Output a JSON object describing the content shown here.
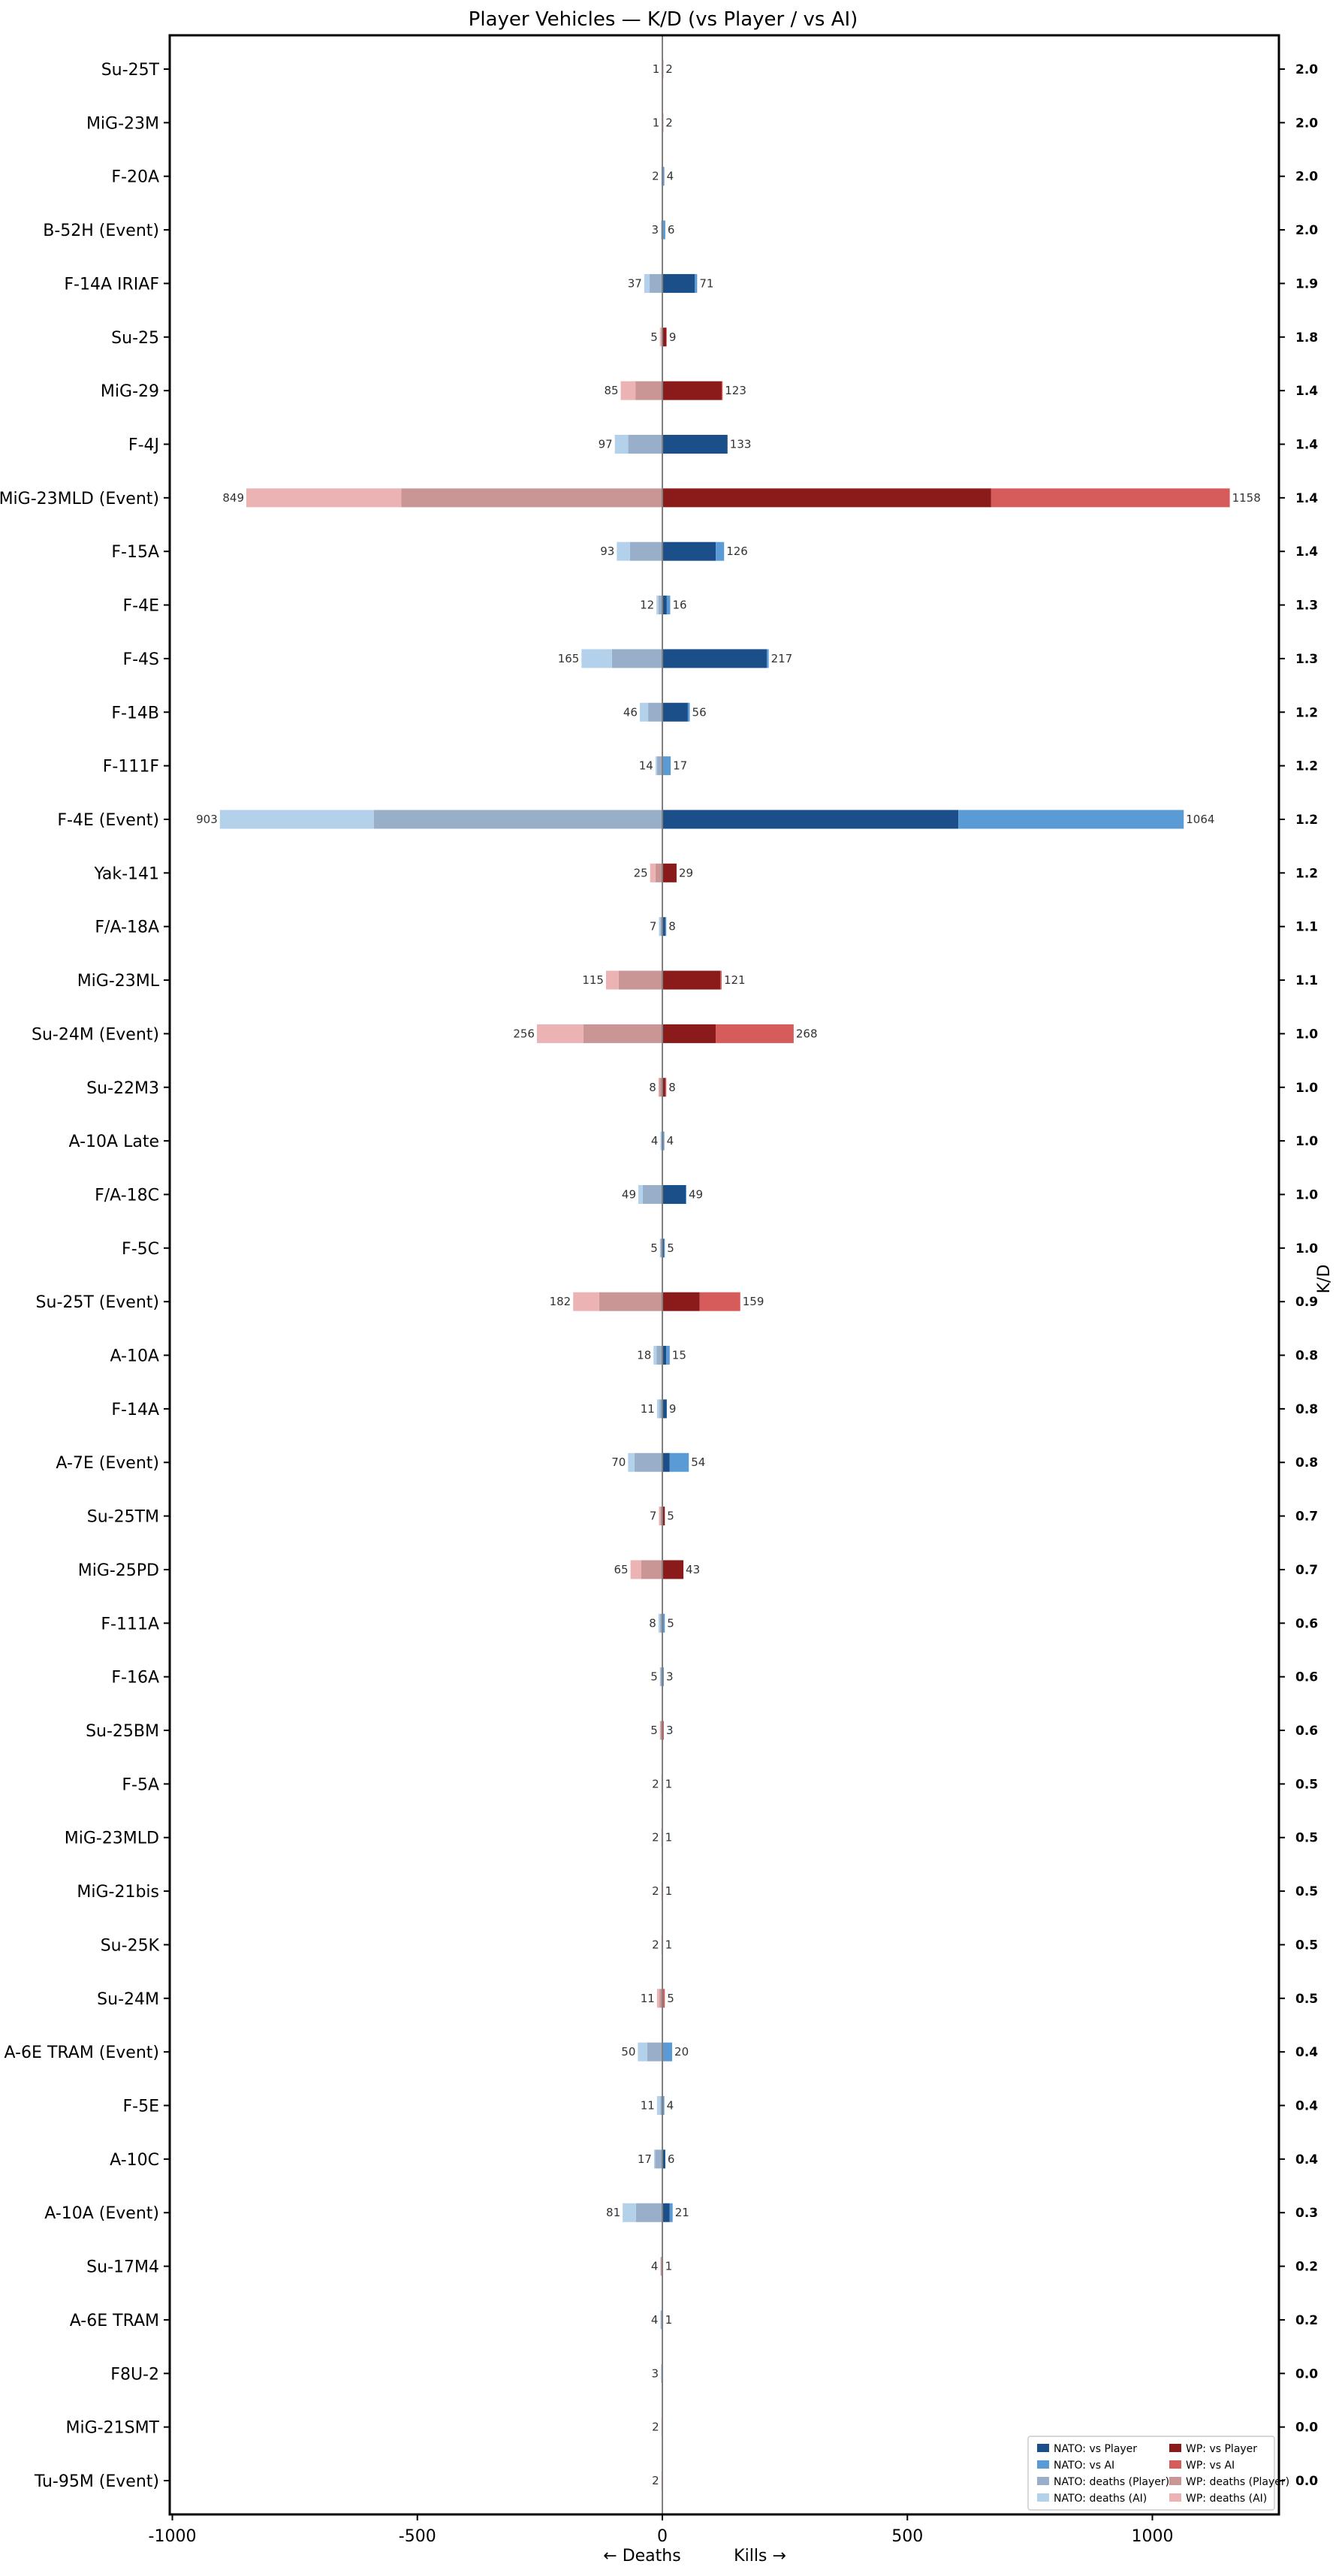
{
  "chart_data": {
    "type": "bar",
    "orientation": "horizontal-diverging-stacked",
    "title": "Player Vehicles — K/D (vs Player / vs AI)",
    "xlabel_left": "← Deaths",
    "xlabel_right": "Kills →",
    "right_ylabel": "K/D",
    "xlim": [
      -1000,
      1250
    ],
    "xticks": [
      -1000,
      -500,
      0,
      500,
      1000
    ],
    "grid": false,
    "legend_position": "bottom-right",
    "colors": {
      "NATO": {
        "kills_player": "#1b4f8a",
        "kills_ai": "#5b9bd5",
        "deaths_player": "#99afc9",
        "deaths_ai": "#b3d1eb"
      },
      "WP": {
        "kills_player": "#8b1a1a",
        "kills_ai": "#d65c5c",
        "deaths_player": "#c99595",
        "deaths_ai": "#ebb3b3"
      }
    },
    "legend": [
      {
        "label": "NATO: vs Player",
        "key": "NATO.kills_player"
      },
      {
        "label": "NATO: vs AI",
        "key": "NATO.kills_ai"
      },
      {
        "label": "NATO: deaths (Player)",
        "key": "NATO.deaths_player"
      },
      {
        "label": "NATO: deaths (AI)",
        "key": "NATO.deaths_ai"
      },
      {
        "label": "WP: vs Player",
        "key": "WP.kills_player"
      },
      {
        "label": "WP: vs AI",
        "key": "WP.kills_ai"
      },
      {
        "label": "WP: deaths (Player)",
        "key": "WP.deaths_player"
      },
      {
        "label": "WP: deaths (AI)",
        "key": "WP.deaths_ai"
      }
    ],
    "rows": [
      {
        "name": "Su-25T",
        "side": "WP",
        "kills_player": 1,
        "kills_ai": 1,
        "deaths_player": 0,
        "deaths_ai": 1,
        "kills": 2,
        "deaths": 1,
        "kd": "2.0"
      },
      {
        "name": "MiG-23M",
        "side": "WP",
        "kills_player": 1,
        "kills_ai": 1,
        "deaths_player": 0,
        "deaths_ai": 1,
        "kills": 2,
        "deaths": 1,
        "kd": "2.0"
      },
      {
        "name": "F-20A",
        "side": "NATO",
        "kills_player": 2,
        "kills_ai": 2,
        "deaths_player": 1,
        "deaths_ai": 1,
        "kills": 4,
        "deaths": 2,
        "kd": "2.0"
      },
      {
        "name": "B-52H (Event)",
        "side": "NATO",
        "kills_player": 0,
        "kills_ai": 6,
        "deaths_player": 2,
        "deaths_ai": 1,
        "kills": 6,
        "deaths": 3,
        "kd": "2.0"
      },
      {
        "name": "F-14A IRIAF",
        "side": "NATO",
        "kills_player": 66,
        "kills_ai": 5,
        "deaths_player": 26,
        "deaths_ai": 11,
        "kills": 71,
        "deaths": 37,
        "kd": "1.9"
      },
      {
        "name": "Su-25",
        "side": "WP",
        "kills_player": 8,
        "kills_ai": 1,
        "deaths_player": 2,
        "deaths_ai": 3,
        "kills": 9,
        "deaths": 5,
        "kd": "1.8"
      },
      {
        "name": "MiG-29",
        "side": "WP",
        "kills_player": 121,
        "kills_ai": 2,
        "deaths_player": 55,
        "deaths_ai": 30,
        "kills": 123,
        "deaths": 85,
        "kd": "1.4"
      },
      {
        "name": "F-4J",
        "side": "NATO",
        "kills_player": 133,
        "kills_ai": 0,
        "deaths_player": 70,
        "deaths_ai": 27,
        "kills": 133,
        "deaths": 97,
        "kd": "1.4"
      },
      {
        "name": "MiG-23MLD (Event)",
        "side": "WP",
        "kills_player": 671,
        "kills_ai": 487,
        "deaths_player": 533,
        "deaths_ai": 316,
        "kills": 1158,
        "deaths": 849,
        "kd": "1.4"
      },
      {
        "name": "F-15A",
        "side": "NATO",
        "kills_player": 109,
        "kills_ai": 17,
        "deaths_player": 66,
        "deaths_ai": 27,
        "kills": 126,
        "deaths": 93,
        "kd": "1.4"
      },
      {
        "name": "F-4E",
        "side": "NATO",
        "kills_player": 9,
        "kills_ai": 7,
        "deaths_player": 8,
        "deaths_ai": 4,
        "kills": 16,
        "deaths": 12,
        "kd": "1.3"
      },
      {
        "name": "F-4S",
        "side": "NATO",
        "kills_player": 213,
        "kills_ai": 4,
        "deaths_player": 103,
        "deaths_ai": 62,
        "kills": 217,
        "deaths": 165,
        "kd": "1.3"
      },
      {
        "name": "F-14B",
        "side": "NATO",
        "kills_player": 52,
        "kills_ai": 4,
        "deaths_player": 29,
        "deaths_ai": 17,
        "kills": 56,
        "deaths": 46,
        "kd": "1.2"
      },
      {
        "name": "F-111F",
        "side": "NATO",
        "kills_player": 2,
        "kills_ai": 15,
        "deaths_player": 11,
        "deaths_ai": 3,
        "kills": 17,
        "deaths": 14,
        "kd": "1.2"
      },
      {
        "name": "F-4E (Event)",
        "side": "NATO",
        "kills_player": 604,
        "kills_ai": 460,
        "deaths_player": 589,
        "deaths_ai": 314,
        "kills": 1064,
        "deaths": 903,
        "kd": "1.2"
      },
      {
        "name": "Yak-141",
        "side": "WP",
        "kills_player": 29,
        "kills_ai": 0,
        "deaths_player": 14,
        "deaths_ai": 11,
        "kills": 29,
        "deaths": 25,
        "kd": "1.2"
      },
      {
        "name": "F/A-18A",
        "side": "NATO",
        "kills_player": 6,
        "kills_ai": 2,
        "deaths_player": 4,
        "deaths_ai": 3,
        "kills": 8,
        "deaths": 7,
        "kd": "1.1"
      },
      {
        "name": "MiG-23ML",
        "side": "WP",
        "kills_player": 118,
        "kills_ai": 3,
        "deaths_player": 89,
        "deaths_ai": 26,
        "kills": 121,
        "deaths": 115,
        "kd": "1.1"
      },
      {
        "name": "Su-24M (Event)",
        "side": "WP",
        "kills_player": 109,
        "kills_ai": 159,
        "deaths_player": 161,
        "deaths_ai": 95,
        "kills": 268,
        "deaths": 256,
        "kd": "1.0"
      },
      {
        "name": "Su-22M3",
        "side": "WP",
        "kills_player": 6,
        "kills_ai": 2,
        "deaths_player": 6,
        "deaths_ai": 2,
        "kills": 8,
        "deaths": 8,
        "kd": "1.0"
      },
      {
        "name": "A-10A Late",
        "side": "NATO",
        "kills_player": 0,
        "kills_ai": 4,
        "deaths_player": 2,
        "deaths_ai": 2,
        "kills": 4,
        "deaths": 4,
        "kd": "1.0"
      },
      {
        "name": "F/A-18C",
        "side": "NATO",
        "kills_player": 48,
        "kills_ai": 1,
        "deaths_player": 40,
        "deaths_ai": 9,
        "kills": 49,
        "deaths": 49,
        "kd": "1.0"
      },
      {
        "name": "F-5C",
        "side": "NATO",
        "kills_player": 3,
        "kills_ai": 2,
        "deaths_player": 4,
        "deaths_ai": 1,
        "kills": 5,
        "deaths": 5,
        "kd": "1.0"
      },
      {
        "name": "Su-25T (Event)",
        "side": "WP",
        "kills_player": 76,
        "kills_ai": 83,
        "deaths_player": 129,
        "deaths_ai": 53,
        "kills": 159,
        "deaths": 182,
        "kd": "0.9"
      },
      {
        "name": "A-10A",
        "side": "NATO",
        "kills_player": 8,
        "kills_ai": 7,
        "deaths_player": 12,
        "deaths_ai": 6,
        "kills": 15,
        "deaths": 18,
        "kd": "0.8"
      },
      {
        "name": "F-14A",
        "side": "NATO",
        "kills_player": 9,
        "kills_ai": 0,
        "deaths_player": 6,
        "deaths_ai": 5,
        "kills": 9,
        "deaths": 11,
        "kd": "0.8"
      },
      {
        "name": "A-7E (Event)",
        "side": "NATO",
        "kills_player": 15,
        "kills_ai": 39,
        "deaths_player": 57,
        "deaths_ai": 13,
        "kills": 54,
        "deaths": 70,
        "kd": "0.8"
      },
      {
        "name": "Su-25TM",
        "side": "WP",
        "kills_player": 5,
        "kills_ai": 0,
        "deaths_player": 4,
        "deaths_ai": 3,
        "kills": 5,
        "deaths": 7,
        "kd": "0.7"
      },
      {
        "name": "MiG-25PD",
        "side": "WP",
        "kills_player": 43,
        "kills_ai": 0,
        "deaths_player": 43,
        "deaths_ai": 22,
        "kills": 43,
        "deaths": 65,
        "kd": "0.7"
      },
      {
        "name": "F-111A",
        "side": "NATO",
        "kills_player": 1,
        "kills_ai": 4,
        "deaths_player": 5,
        "deaths_ai": 3,
        "kills": 5,
        "deaths": 8,
        "kd": "0.6"
      },
      {
        "name": "F-16A",
        "side": "NATO",
        "kills_player": 1,
        "kills_ai": 2,
        "deaths_player": 4,
        "deaths_ai": 1,
        "kills": 3,
        "deaths": 5,
        "kd": "0.6"
      },
      {
        "name": "Su-25BM",
        "side": "WP",
        "kills_player": 1,
        "kills_ai": 2,
        "deaths_player": 4,
        "deaths_ai": 1,
        "kills": 3,
        "deaths": 5,
        "kd": "0.6"
      },
      {
        "name": "F-5A",
        "side": "NATO",
        "kills_player": 0,
        "kills_ai": 1,
        "deaths_player": 0,
        "deaths_ai": 2,
        "kills": 1,
        "deaths": 2,
        "kd": "0.5"
      },
      {
        "name": "MiG-23MLD",
        "side": "WP",
        "kills_player": 0,
        "kills_ai": 1,
        "deaths_player": 2,
        "deaths_ai": 0,
        "kills": 1,
        "deaths": 2,
        "kd": "0.5"
      },
      {
        "name": "MiG-21bis",
        "side": "WP",
        "kills_player": 0,
        "kills_ai": 1,
        "deaths_player": 1,
        "deaths_ai": 1,
        "kills": 1,
        "deaths": 2,
        "kd": "0.5"
      },
      {
        "name": "Su-25K",
        "side": "WP",
        "kills_player": 0,
        "kills_ai": 1,
        "deaths_player": 1,
        "deaths_ai": 1,
        "kills": 1,
        "deaths": 2,
        "kd": "0.5"
      },
      {
        "name": "Su-24M",
        "side": "WP",
        "kills_player": 0,
        "kills_ai": 5,
        "deaths_player": 6,
        "deaths_ai": 5,
        "kills": 5,
        "deaths": 11,
        "kd": "0.5"
      },
      {
        "name": "A-6E TRAM (Event)",
        "side": "NATO",
        "kills_player": 2,
        "kills_ai": 18,
        "deaths_player": 31,
        "deaths_ai": 19,
        "kills": 20,
        "deaths": 50,
        "kd": "0.4"
      },
      {
        "name": "F-5E",
        "side": "NATO",
        "kills_player": 0,
        "kills_ai": 4,
        "deaths_player": 4,
        "deaths_ai": 7,
        "kills": 4,
        "deaths": 11,
        "kd": "0.4"
      },
      {
        "name": "A-10C",
        "side": "NATO",
        "kills_player": 6,
        "kills_ai": 0,
        "deaths_player": 15,
        "deaths_ai": 2,
        "kills": 6,
        "deaths": 17,
        "kd": "0.4"
      },
      {
        "name": "A-10A (Event)",
        "side": "NATO",
        "kills_player": 15,
        "kills_ai": 6,
        "deaths_player": 54,
        "deaths_ai": 27,
        "kills": 21,
        "deaths": 81,
        "kd": "0.3"
      },
      {
        "name": "Su-17M4",
        "side": "WP",
        "kills_player": 0,
        "kills_ai": 1,
        "deaths_player": 3,
        "deaths_ai": 1,
        "kills": 1,
        "deaths": 4,
        "kd": "0.2"
      },
      {
        "name": "A-6E TRAM",
        "side": "NATO",
        "kills_player": 0,
        "kills_ai": 1,
        "deaths_player": 3,
        "deaths_ai": 1,
        "kills": 1,
        "deaths": 4,
        "kd": "0.2"
      },
      {
        "name": "F8U-2",
        "side": "NATO",
        "kills_player": 0,
        "kills_ai": 0,
        "deaths_player": 2,
        "deaths_ai": 1,
        "kills": 0,
        "deaths": 3,
        "kd": "0.0"
      },
      {
        "name": "MiG-21SMT",
        "side": "WP",
        "kills_player": 0,
        "kills_ai": 0,
        "deaths_player": 1,
        "deaths_ai": 1,
        "kills": 0,
        "deaths": 2,
        "kd": "0.0"
      },
      {
        "name": "Tu-95M (Event)",
        "side": "WP",
        "kills_player": 0,
        "kills_ai": 0,
        "deaths_player": 1,
        "deaths_ai": 1,
        "kills": 0,
        "deaths": 2,
        "kd": "0.0"
      }
    ]
  }
}
